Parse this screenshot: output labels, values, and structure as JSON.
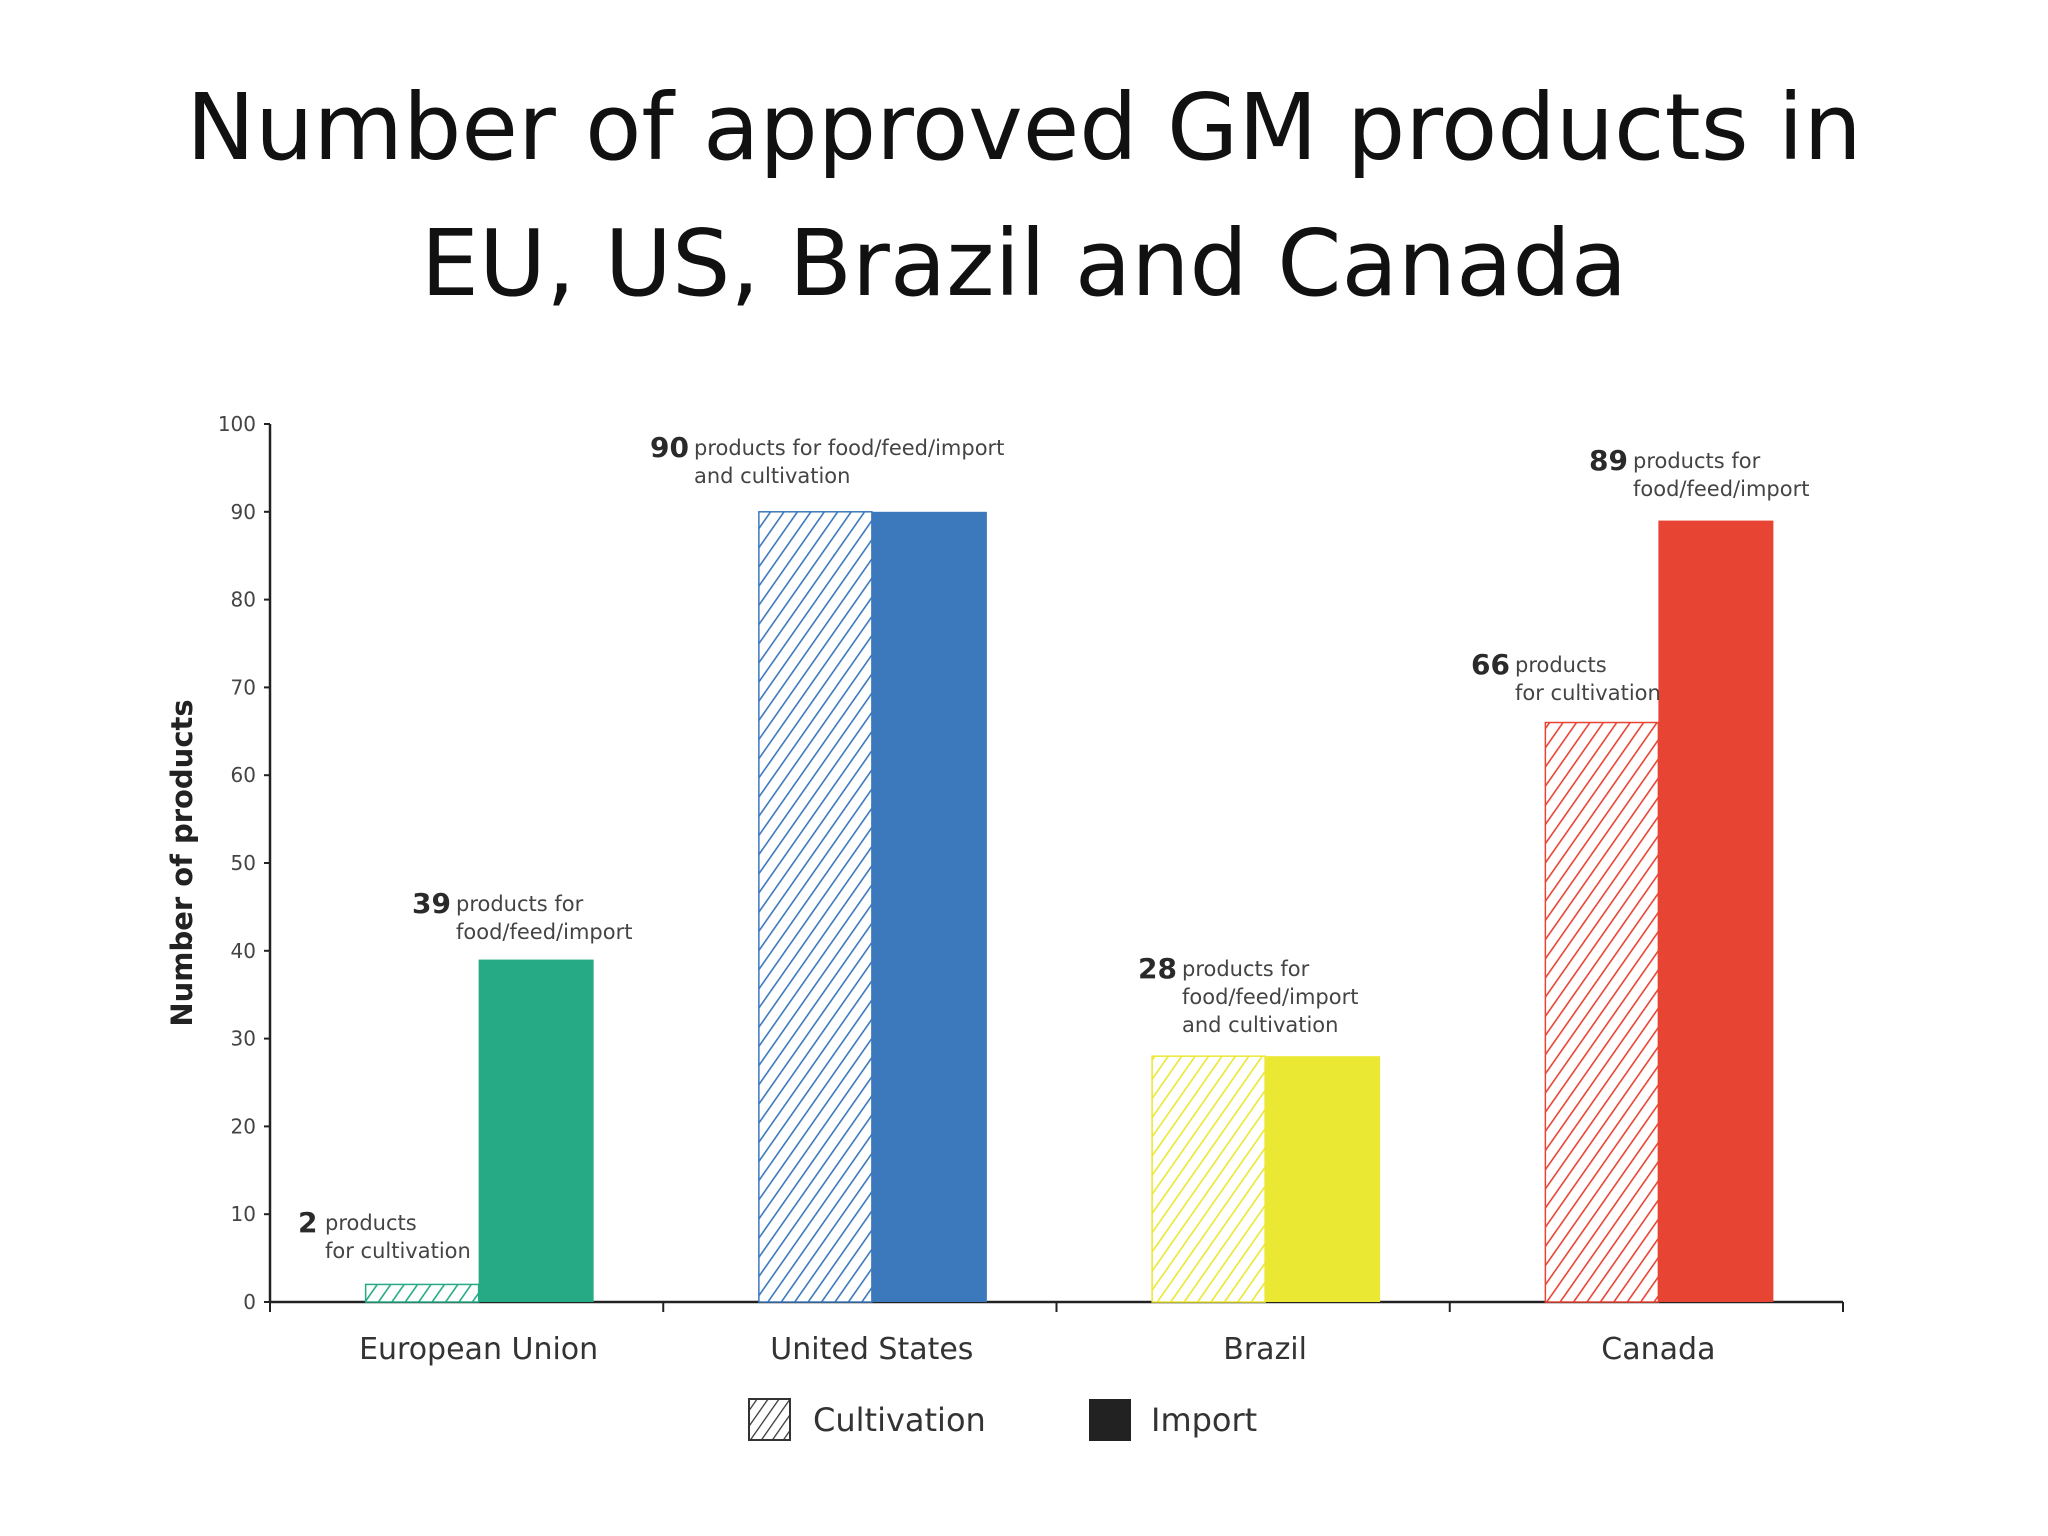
{
  "slide": {
    "title_line1": "Number of approved GM products in",
    "title_line2": "EU, US, Brazil and Canada"
  },
  "chart_data": {
    "type": "bar",
    "categories": [
      "European Union",
      "United States",
      "Brazil",
      "Canada"
    ],
    "series": [
      {
        "name": "Cultivation",
        "pattern": "hatched",
        "values": [
          2,
          90,
          28,
          66
        ]
      },
      {
        "name": "Import",
        "pattern": "solid",
        "values": [
          39,
          90,
          28,
          89
        ]
      }
    ],
    "category_colors": [
      "#25aa85",
      "#3c78bc",
      "#ebe834",
      "#e84434"
    ],
    "ylabel": "Number of products",
    "ylim": [
      0,
      100
    ],
    "yticks": [
      0,
      10,
      20,
      30,
      40,
      50,
      60,
      70,
      80,
      90,
      100
    ],
    "legend": {
      "position": "bottom-center",
      "items": [
        "Cultivation",
        "Import"
      ]
    },
    "grid": false,
    "annotations": [
      {
        "number": "2",
        "lines": [
          "products",
          "for cultivation"
        ]
      },
      {
        "number": "39",
        "lines": [
          "products for",
          "food/feed/import"
        ]
      },
      {
        "number": "90",
        "lines": [
          "products for food/feed/import",
          "and cultivation"
        ]
      },
      {
        "number": "28",
        "lines": [
          "products for",
          "food/feed/import",
          "and cultivation"
        ]
      },
      {
        "number": "66",
        "lines": [
          "products",
          "for cultivation"
        ]
      },
      {
        "number": "89",
        "lines": [
          "products for",
          "food/feed/import"
        ]
      }
    ]
  }
}
